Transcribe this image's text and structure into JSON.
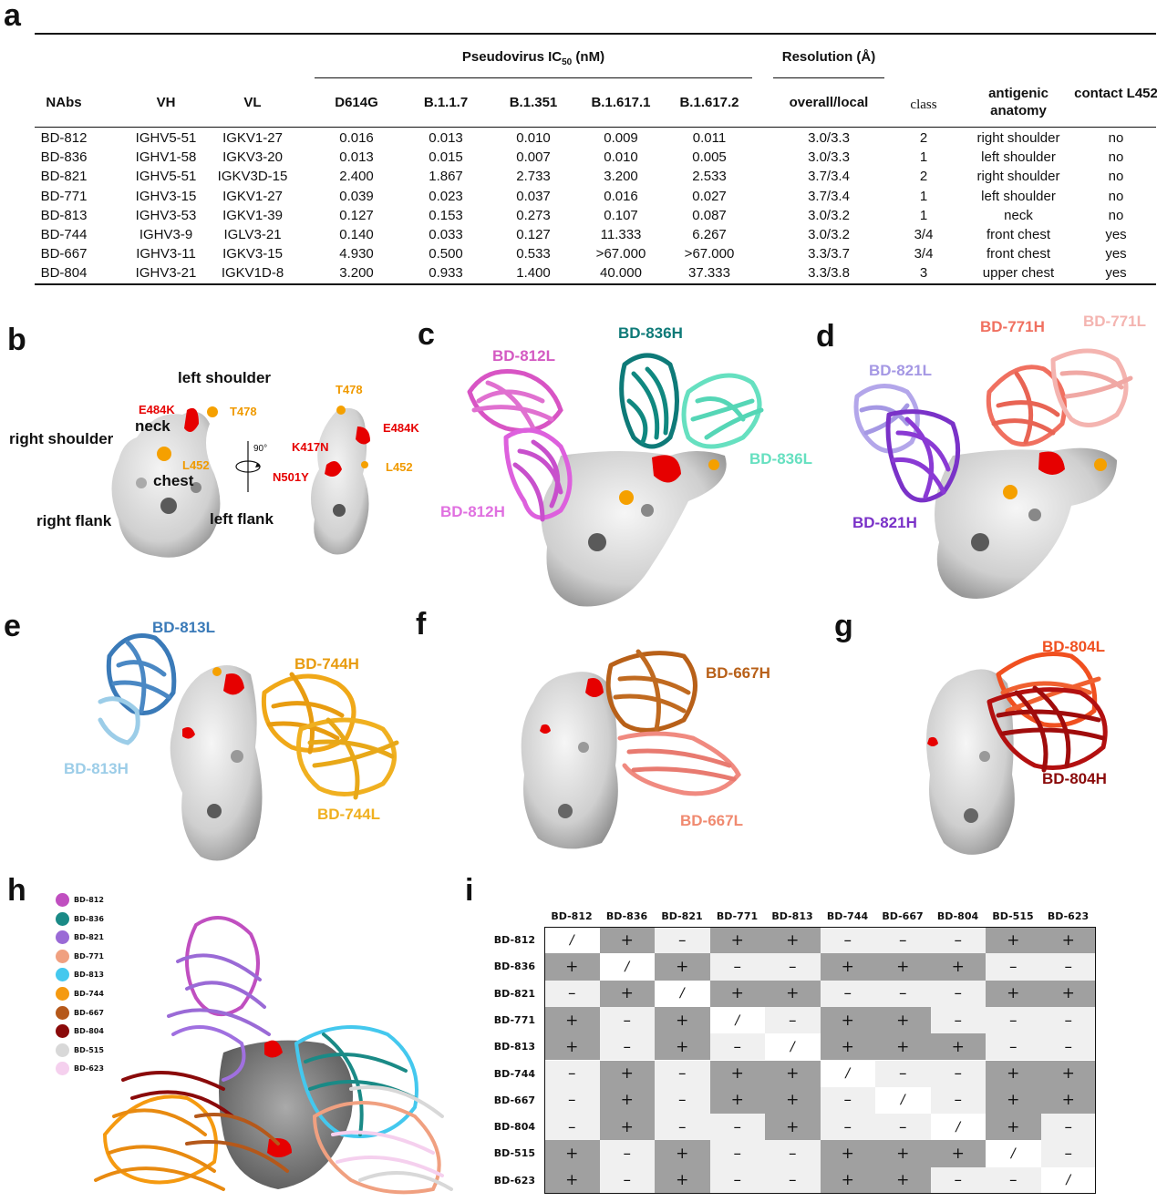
{
  "panels": {
    "a": "a",
    "b": "b",
    "c": "c",
    "d": "d",
    "e": "e",
    "f": "f",
    "g": "g",
    "h": "h",
    "i": "i"
  },
  "table": {
    "group_headers": {
      "ic50_prefix": "Pseudovirus IC",
      "ic50_sub": "50",
      "ic50_suffix": " (nM)",
      "resolution": "Resolution (Å)"
    },
    "columns": [
      "NAbs",
      "VH",
      "VL",
      "D614G",
      "B.1.1.7",
      "B.1.351",
      "B.1.617.1",
      "B.1.617.2",
      "overall/local",
      "class",
      "antigenic anatomy",
      "contact L452"
    ],
    "rows": [
      [
        "BD-812",
        "IGHV5-51",
        "IGKV1-27",
        "0.016",
        "0.013",
        "0.010",
        "0.009",
        "0.011",
        "3.0/3.3",
        "2",
        "right shoulder",
        "no"
      ],
      [
        "BD-836",
        "IGHV1-58",
        "IGKV3-20",
        "0.013",
        "0.015",
        "0.007",
        "0.010",
        "0.005",
        "3.0/3.3",
        "1",
        "left shoulder",
        "no"
      ],
      [
        "BD-821",
        "IGHV5-51",
        "IGKV3D-15",
        "2.400",
        "1.867",
        "2.733",
        "3.200",
        "2.533",
        "3.7/3.4",
        "2",
        "right shoulder",
        "no"
      ],
      [
        "BD-771",
        "IGHV3-15",
        "IGKV1-27",
        "0.039",
        "0.023",
        "0.037",
        "0.016",
        "0.027",
        "3.7/3.4",
        "1",
        "left shoulder",
        "no"
      ],
      [
        "BD-813",
        "IGHV3-53",
        "IGKV1-39",
        "0.127",
        "0.153",
        "0.273",
        "0.107",
        "0.087",
        "3.0/3.2",
        "1",
        "neck",
        "no"
      ],
      [
        "BD-744",
        "IGHV3-9",
        "IGLV3-21",
        "0.140",
        "0.033",
        "0.127",
        "11.333",
        "6.267",
        "3.0/3.2",
        "3/4",
        "front chest",
        "yes"
      ],
      [
        "BD-667",
        "IGHV3-11",
        "IGKV3-15",
        "4.930",
        "0.500",
        "0.533",
        ">67.000",
        ">67.000",
        "3.3/3.7",
        "3/4",
        "front chest",
        "yes"
      ],
      [
        "BD-804",
        "IGHV3-21",
        "IGKV1D-8",
        "3.200",
        "0.933",
        "1.400",
        "40.000",
        "37.333",
        "3.3/3.8",
        "3",
        "upper chest",
        "yes"
      ]
    ]
  },
  "panel_b": {
    "left": {
      "left_shoulder": "left shoulder",
      "E484K": "E484K",
      "T478": "T478",
      "neck": "neck",
      "right_shoulder": "right shoulder",
      "L452": "L452",
      "chest": "chest",
      "right_flank": "right flank",
      "left_flank": "left flank"
    },
    "rotation": "90°",
    "right": {
      "T478": "T478",
      "E484K": "E484K",
      "K417N": "K417N",
      "N501Y": "N501Y",
      "L452": "L452"
    }
  },
  "panel_c": {
    "l1": "BD-812L",
    "l2": "BD-836H",
    "l3": "BD-836L",
    "l4": "BD-812H"
  },
  "panel_d": {
    "l1": "BD-771H",
    "l2": "BD-771L",
    "l3": "BD-821L",
    "l4": "BD-821H"
  },
  "panel_e": {
    "l1": "BD-813L",
    "l2": "BD-744H",
    "l3": "BD-813H",
    "l4": "BD-744L"
  },
  "panel_f": {
    "l1": "BD-667H",
    "l2": "BD-667L"
  },
  "panel_g": {
    "l1": "BD-804L",
    "l2": "BD-804H"
  },
  "legend_h": [
    {
      "name": "BD-812",
      "color": "#c04fc0"
    },
    {
      "name": "BD-836",
      "color": "#1a8a86"
    },
    {
      "name": "BD-821",
      "color": "#9a6ad6"
    },
    {
      "name": "BD-771",
      "color": "#f0a080"
    },
    {
      "name": "BD-813",
      "color": "#44c8ee"
    },
    {
      "name": "BD-744",
      "color": "#f59a10"
    },
    {
      "name": "BD-667",
      "color": "#b5581a"
    },
    {
      "name": "BD-804",
      "color": "#8a0a0a"
    },
    {
      "name": "BD-515",
      "color": "#d8d8d8"
    },
    {
      "name": "BD-623",
      "color": "#f5d0ee"
    }
  ],
  "matrix": {
    "labels": [
      "BD-812",
      "BD-836",
      "BD-821",
      "BD-771",
      "BD-813",
      "BD-744",
      "BD-667",
      "BD-804",
      "BD-515",
      "BD-623"
    ],
    "cells": [
      [
        "/",
        "+",
        "–",
        "+",
        "+",
        "–",
        "–",
        "–",
        "+",
        "+"
      ],
      [
        "+",
        "/",
        "+",
        "–",
        "–",
        "+",
        "+",
        "+",
        "–",
        "–"
      ],
      [
        "–",
        "+",
        "/",
        "+",
        "+",
        "–",
        "–",
        "–",
        "+",
        "+"
      ],
      [
        "+",
        "–",
        "+",
        "/",
        "–",
        "+",
        "+",
        "–",
        "–",
        "–"
      ],
      [
        "+",
        "–",
        "+",
        "–",
        "/",
        "+",
        "+",
        "+",
        "–",
        "–"
      ],
      [
        "–",
        "+",
        "–",
        "+",
        "+",
        "/",
        "–",
        "–",
        "+",
        "+"
      ],
      [
        "–",
        "+",
        "–",
        "+",
        "+",
        "–",
        "/",
        "–",
        "+",
        "+"
      ],
      [
        "–",
        "+",
        "–",
        "–",
        "+",
        "–",
        "–",
        "/",
        "+",
        "–"
      ],
      [
        "+",
        "–",
        "+",
        "–",
        "–",
        "+",
        "+",
        "+",
        "/",
        "–"
      ],
      [
        "+",
        "–",
        "+",
        "–",
        "–",
        "+",
        "+",
        "–",
        "–",
        "/"
      ]
    ],
    "colors": {
      "plus": "#a0a0a0",
      "minus": "#f0f0f0",
      "diag": "#ffffff"
    }
  }
}
